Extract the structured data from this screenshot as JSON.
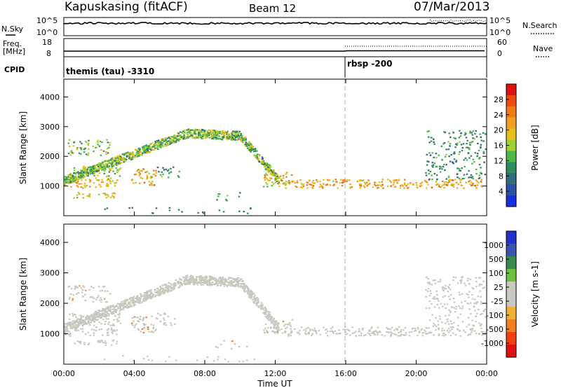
{
  "header": {
    "station": "Kapuskasing (fitACF)",
    "beam": "Beam 12",
    "date": "07/Mar/2013"
  },
  "sky_panel": {
    "left_label": "N.Sky",
    "right_label": "N.Search",
    "ticks_left": [
      "10^5",
      "10^0"
    ],
    "ticks_right": [
      "10^5",
      "10^0"
    ]
  },
  "freq_panel": {
    "left_label_top": "Freq.",
    "left_label_bottom": "[MHz]",
    "right_label": "Nave",
    "ticks_left": [
      "18",
      "8"
    ],
    "ticks_right": [
      "60",
      "0"
    ]
  },
  "cpid_panel": {
    "left_label": "CPID",
    "program_1": "themis (tau) -3310",
    "program_2": "rbsp -200"
  },
  "colorbars": {
    "power": {
      "title": "Power [dB]",
      "labels": [
        "28",
        "24",
        "20",
        "16",
        "12",
        "8",
        "4"
      ],
      "colors": [
        "#e01010",
        "#f04a12",
        "#f07a18",
        "#f0a020",
        "#e4c018",
        "#a0d030",
        "#4ab848",
        "#2e8c5e",
        "#2f6e78",
        "#2c4fa8",
        "#1a2ee0"
      ]
    },
    "velocity": {
      "title": "Velocity [m s-1]",
      "labels": [
        "1000",
        "500",
        "100",
        "25",
        "-25",
        "-100",
        "-500",
        "-1000"
      ],
      "colors": [
        "#2030c8",
        "#3a52b0",
        "#3a8a50",
        "#70c040",
        "#c8c8c0",
        "#c8c8c0",
        "#f0b030",
        "#f08020",
        "#f04010",
        "#e01010"
      ]
    }
  },
  "chart_data": [
    {
      "type": "heatmap",
      "quantity": "Power",
      "ylabel": "Slant Range [km]",
      "xlim": [
        "00:00",
        "00:00"
      ],
      "ylim": [
        0,
        4600
      ],
      "y_ticks": [
        1000,
        2000,
        3000,
        4000
      ],
      "x_tick_labels": [
        "00:00",
        "04:00",
        "08:00",
        "12:00",
        "16:00",
        "20:00",
        "00:00"
      ],
      "clim": [
        0,
        30
      ],
      "colorbar_ticks": [
        4,
        8,
        12,
        16,
        20,
        24,
        28
      ]
    },
    {
      "type": "heatmap",
      "quantity": "Velocity",
      "ylabel": "Slant Range [km]",
      "xlabel": "Time UT",
      "ylim": [
        0,
        4600
      ],
      "y_ticks": [
        1000,
        2000,
        3000,
        4000
      ],
      "x_tick_labels": [
        "00:00",
        "04:00",
        "08:00",
        "12:00",
        "16:00",
        "20:00",
        "00:00"
      ],
      "colorbar_ticks": [
        1000,
        500,
        100,
        25,
        -25,
        -100,
        -500,
        -1000
      ]
    }
  ],
  "axes": {
    "ylabel": "Slant Range [km]",
    "xlabel": "Time UT",
    "y_ticks": [
      "1000",
      "2000",
      "3000",
      "4000"
    ],
    "x_ticks": [
      "00:00",
      "04:00",
      "08:00",
      "12:00",
      "16:00",
      "20:00",
      "00:00"
    ]
  }
}
